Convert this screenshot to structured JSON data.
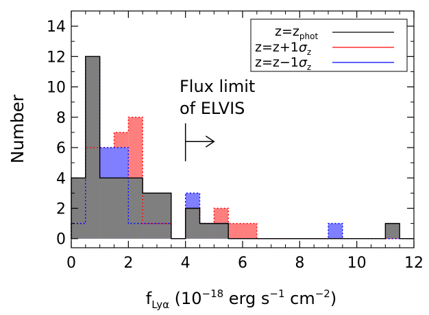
{
  "chart_data": {
    "type": "histogram",
    "xlabel": {
      "main": "f",
      "sub": "Lyα",
      "open": " (10",
      "exp": "−18",
      "rest": " erg s",
      "exp2": "−1",
      "rest2": " cm",
      "exp3": "−2",
      "close": ")"
    },
    "ylabel": "Number",
    "xlim": [
      0,
      12
    ],
    "ylim": [
      -0.6,
      15
    ],
    "x_ticks": [
      "0",
      "2",
      "4",
      "6",
      "8",
      "10",
      "12"
    ],
    "y_ticks": [
      "0",
      "2",
      "4",
      "6",
      "8",
      "10",
      "12",
      "14"
    ],
    "bin_width": 0.5,
    "series": [
      {
        "name": "z=z_phot",
        "legend_main": "z=z",
        "legend_sub": "phot",
        "color": "#000000",
        "fill": "#7f7f7f",
        "bin_edges_start": 0,
        "counts": [
          4,
          12,
          4,
          4,
          4,
          3,
          3,
          0,
          2,
          1,
          1,
          0,
          0,
          0,
          0,
          0,
          0,
          0,
          0,
          0,
          0,
          0,
          1,
          0
        ]
      },
      {
        "name": "z=z+1σ_z",
        "legend_main": "z=z+1",
        "legend_sigma": "σ",
        "legend_sub": "z",
        "color": "#ff0000",
        "fill": "#ff7f7f",
        "bin_edges_start": 0,
        "counts": [
          1,
          6,
          6,
          7,
          8,
          1,
          1,
          0,
          2,
          1,
          2,
          1,
          1,
          0,
          0,
          0,
          0,
          0,
          0,
          0,
          0,
          0,
          0,
          0
        ]
      },
      {
        "name": "z=z−1σ_z",
        "legend_main": "z=z−1",
        "legend_sigma": "σ",
        "legend_sub": "z",
        "color": "#0000ff",
        "fill": "#7f7fff",
        "bin_edges_start": 0,
        "counts": [
          1,
          12,
          6,
          6,
          1,
          1,
          1,
          0,
          3,
          1,
          1,
          0,
          0,
          0,
          0,
          0,
          0,
          0,
          1,
          0,
          0,
          0,
          0,
          0
        ]
      }
    ],
    "annotation": {
      "line1": "Flux limit",
      "line2": "of ELVIS",
      "x": 4.0,
      "y_bottom": 5.1,
      "y_top": 7.6,
      "arrow_to_x": 5.0,
      "arrow_y": 6.4
    }
  }
}
